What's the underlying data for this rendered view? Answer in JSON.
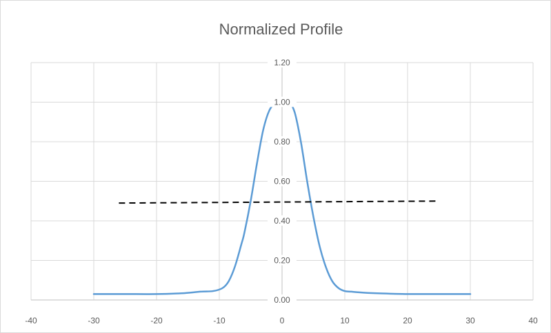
{
  "chart_data": {
    "type": "line",
    "title": "Normalized Profile",
    "xlabel": "",
    "ylabel": "",
    "xlim": [
      -40,
      40
    ],
    "ylim": [
      0,
      1.2
    ],
    "x_ticks": [
      "-40",
      "-30",
      "-20",
      "-10",
      "0",
      "10",
      "20",
      "30",
      "40"
    ],
    "y_ticks": [
      "0.00",
      "0.20",
      "0.40",
      "0.60",
      "0.80",
      "1.00",
      "1.20"
    ],
    "grid": "major horizontal and vertical",
    "legend": "none",
    "series": [
      {
        "color": "#5b9bd5",
        "x": [
          -30,
          -25,
          -20,
          -16,
          -13,
          -11,
          -9.5,
          -8.5,
          -7.5,
          -6.5,
          -6,
          -5,
          -4,
          -3,
          -2,
          -1,
          0,
          1,
          2,
          3,
          4,
          5,
          6,
          7,
          8,
          9,
          10,
          11,
          13,
          16,
          20,
          25,
          30
        ],
        "y": [
          0.03,
          0.03,
          0.03,
          0.034,
          0.042,
          0.045,
          0.06,
          0.095,
          0.17,
          0.28,
          0.34,
          0.5,
          0.69,
          0.86,
          0.96,
          0.995,
          1.0,
          1.005,
          0.95,
          0.8,
          0.6,
          0.42,
          0.27,
          0.165,
          0.095,
          0.06,
          0.045,
          0.042,
          0.037,
          0.033,
          0.03,
          0.03,
          0.03
        ]
      },
      {
        "color": "#000000",
        "style": "dashed",
        "x": [
          -26,
          25
        ],
        "y": [
          0.49,
          0.5
        ]
      }
    ]
  }
}
